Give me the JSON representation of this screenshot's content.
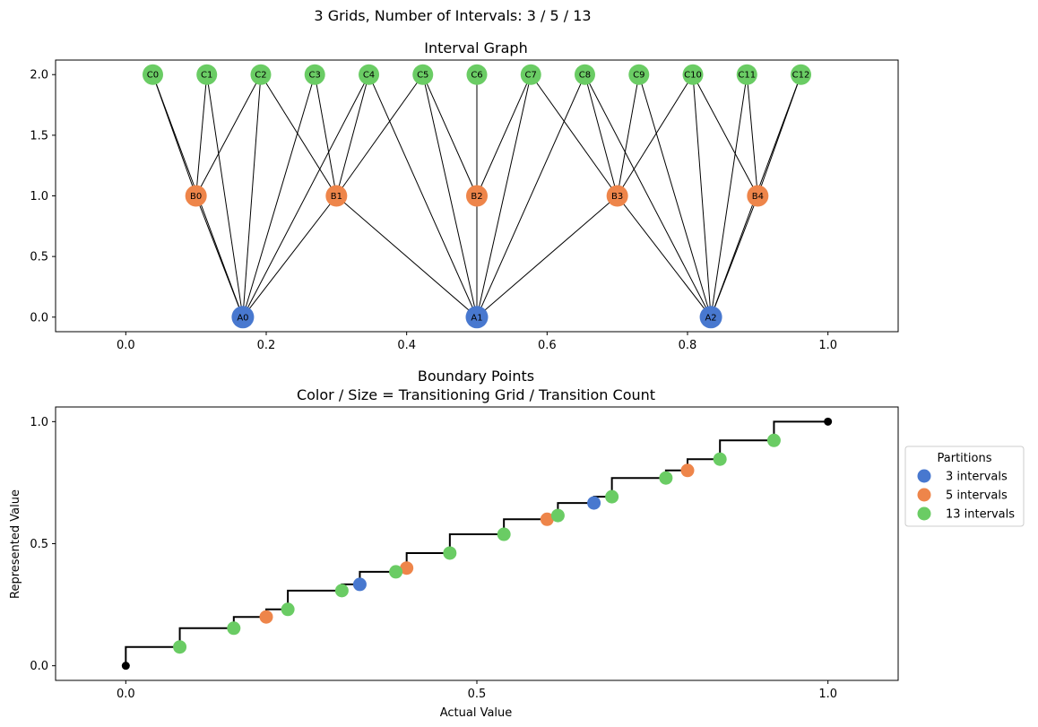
{
  "suptitle": "3 Grids, Number of Intervals: 3 / 5 / 13",
  "colors": {
    "grid3": "#4878cf",
    "grid5": "#ee854a",
    "grid13": "#6acc64",
    "edge": "#000000",
    "step": "#000000"
  },
  "chart_data": [
    {
      "type": "graph",
      "title": "Interval Graph",
      "xlabel": "",
      "ylabel": "",
      "xlim": [
        -0.1,
        1.1
      ],
      "ylim": [
        -0.12,
        2.12
      ],
      "xticks": [
        "0.0",
        "0.2",
        "0.4",
        "0.6",
        "0.8",
        "1.0"
      ],
      "yticks": [
        "0.0",
        "0.5",
        "1.0",
        "1.5",
        "2.0"
      ],
      "nodes": [
        {
          "id": "A0",
          "x": 0.1667,
          "y": 0,
          "group": "grid3"
        },
        {
          "id": "A1",
          "x": 0.5,
          "y": 0,
          "group": "grid3"
        },
        {
          "id": "A2",
          "x": 0.8333,
          "y": 0,
          "group": "grid3"
        },
        {
          "id": "B0",
          "x": 0.1,
          "y": 1,
          "group": "grid5"
        },
        {
          "id": "B1",
          "x": 0.3,
          "y": 1,
          "group": "grid5"
        },
        {
          "id": "B2",
          "x": 0.5,
          "y": 1,
          "group": "grid5"
        },
        {
          "id": "B3",
          "x": 0.7,
          "y": 1,
          "group": "grid5"
        },
        {
          "id": "B4",
          "x": 0.9,
          "y": 1,
          "group": "grid5"
        },
        {
          "id": "C0",
          "x": 0.0385,
          "y": 2,
          "group": "grid13"
        },
        {
          "id": "C1",
          "x": 0.1154,
          "y": 2,
          "group": "grid13"
        },
        {
          "id": "C2",
          "x": 0.1923,
          "y": 2,
          "group": "grid13"
        },
        {
          "id": "C3",
          "x": 0.2692,
          "y": 2,
          "group": "grid13"
        },
        {
          "id": "C4",
          "x": 0.3462,
          "y": 2,
          "group": "grid13"
        },
        {
          "id": "C5",
          "x": 0.4231,
          "y": 2,
          "group": "grid13"
        },
        {
          "id": "C6",
          "x": 0.5,
          "y": 2,
          "group": "grid13"
        },
        {
          "id": "C7",
          "x": 0.5769,
          "y": 2,
          "group": "grid13"
        },
        {
          "id": "C8",
          "x": 0.6538,
          "y": 2,
          "group": "grid13"
        },
        {
          "id": "C9",
          "x": 0.7308,
          "y": 2,
          "group": "grid13"
        },
        {
          "id": "C10",
          "x": 0.8077,
          "y": 2,
          "group": "grid13"
        },
        {
          "id": "C11",
          "x": 0.8846,
          "y": 2,
          "group": "grid13"
        },
        {
          "id": "C12",
          "x": 0.9615,
          "y": 2,
          "group": "grid13"
        }
      ],
      "edges": [
        [
          "A0",
          "B0"
        ],
        [
          "A0",
          "B1"
        ],
        [
          "A1",
          "B1"
        ],
        [
          "A1",
          "B2"
        ],
        [
          "A1",
          "B3"
        ],
        [
          "A2",
          "B3"
        ],
        [
          "A2",
          "B4"
        ],
        [
          "A0",
          "C0"
        ],
        [
          "A0",
          "C1"
        ],
        [
          "A0",
          "C2"
        ],
        [
          "A0",
          "C3"
        ],
        [
          "A0",
          "C4"
        ],
        [
          "A1",
          "C4"
        ],
        [
          "A1",
          "C5"
        ],
        [
          "A1",
          "C6"
        ],
        [
          "A1",
          "C7"
        ],
        [
          "A1",
          "C8"
        ],
        [
          "A2",
          "C8"
        ],
        [
          "A2",
          "C9"
        ],
        [
          "A2",
          "C10"
        ],
        [
          "A2",
          "C11"
        ],
        [
          "A2",
          "C12"
        ],
        [
          "B0",
          "C0"
        ],
        [
          "B0",
          "C1"
        ],
        [
          "B0",
          "C2"
        ],
        [
          "B1",
          "C2"
        ],
        [
          "B1",
          "C3"
        ],
        [
          "B1",
          "C4"
        ],
        [
          "B1",
          "C5"
        ],
        [
          "B2",
          "C5"
        ],
        [
          "B2",
          "C6"
        ],
        [
          "B2",
          "C7"
        ],
        [
          "B3",
          "C7"
        ],
        [
          "B3",
          "C8"
        ],
        [
          "B3",
          "C9"
        ],
        [
          "B3",
          "C10"
        ],
        [
          "B4",
          "C10"
        ],
        [
          "B4",
          "C11"
        ],
        [
          "B4",
          "C12"
        ]
      ]
    },
    {
      "type": "scatter",
      "title": "Boundary Points",
      "subtitle": "Color / Size = Transitioning Grid / Transition Count",
      "xlabel": "Actual Value",
      "ylabel": "Represented Value",
      "xlim": [
        -0.1,
        1.1
      ],
      "ylim": [
        -0.06,
        1.06
      ],
      "xticks": [
        "0.0",
        "0.5",
        "1.0"
      ],
      "yticks": [
        "0.0",
        "0.5",
        "1.0"
      ],
      "legend_title": "Partitions",
      "legend_position": "outside-right",
      "series": [
        {
          "name": "3 intervals",
          "color_key": "grid3",
          "points": [
            [
              0.3333,
              0.3333
            ],
            [
              0.6667,
              0.6667
            ]
          ]
        },
        {
          "name": "5 intervals",
          "color_key": "grid5",
          "points": [
            [
              0.2,
              0.2
            ],
            [
              0.4,
              0.4
            ],
            [
              0.6,
              0.6
            ],
            [
              0.8,
              0.8
            ]
          ]
        },
        {
          "name": "13 intervals",
          "color_key": "grid13",
          "points": [
            [
              0.0769,
              0.0769
            ],
            [
              0.1538,
              0.1538
            ],
            [
              0.2308,
              0.2308
            ],
            [
              0.3077,
              0.3077
            ],
            [
              0.3846,
              0.3846
            ],
            [
              0.4615,
              0.4615
            ],
            [
              0.5385,
              0.5385
            ],
            [
              0.6154,
              0.6154
            ],
            [
              0.6923,
              0.6923
            ],
            [
              0.7692,
              0.7692
            ],
            [
              0.8462,
              0.8462
            ],
            [
              0.9231,
              0.9231
            ]
          ]
        }
      ],
      "endpoints": [
        [
          0,
          0
        ],
        [
          1,
          1
        ]
      ],
      "step_values": [
        0.0,
        0.0769,
        0.1538,
        0.2,
        0.2308,
        0.3077,
        0.3333,
        0.3846,
        0.4,
        0.4615,
        0.5385,
        0.6,
        0.6154,
        0.6667,
        0.6923,
        0.7692,
        0.8,
        0.8462,
        0.9231,
        1.0
      ]
    }
  ]
}
